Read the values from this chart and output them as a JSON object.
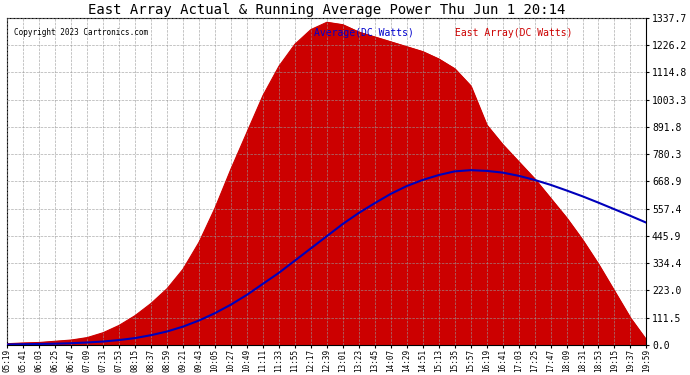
{
  "title": "East Array Actual & Running Average Power Thu Jun 1 20:14",
  "copyright": "Copyright 2023 Cartronics.com",
  "legend_avg": "Average(DC Watts)",
  "legend_east": "East Array(DC Watts)",
  "ymax": 1337.7,
  "ymin": 0.0,
  "yticks": [
    0.0,
    111.5,
    223.0,
    334.4,
    445.9,
    557.4,
    668.9,
    780.3,
    891.8,
    1003.3,
    1114.8,
    1226.2,
    1337.7
  ],
  "bg_color": "#ffffff",
  "plot_bg": "#ffffff",
  "border_color": "#000000",
  "grid_color": "#999999",
  "fill_color": "#cc0000",
  "line_color": "#0000bb",
  "title_color": "#000000",
  "copyright_color": "#000000",
  "legend_avg_color": "#0000cc",
  "legend_east_color": "#cc0000",
  "xtick_labels": [
    "05:19",
    "05:41",
    "06:03",
    "06:25",
    "06:47",
    "07:09",
    "07:31",
    "07:53",
    "08:15",
    "08:37",
    "08:59",
    "09:21",
    "09:43",
    "10:05",
    "10:27",
    "10:49",
    "11:11",
    "11:33",
    "11:55",
    "12:17",
    "12:39",
    "13:01",
    "13:23",
    "13:45",
    "14:07",
    "14:29",
    "14:51",
    "15:13",
    "15:35",
    "15:57",
    "16:19",
    "16:41",
    "17:03",
    "17:25",
    "17:47",
    "18:09",
    "18:31",
    "18:53",
    "19:15",
    "19:37",
    "19:59"
  ],
  "east_array_values": [
    5,
    8,
    10,
    15,
    20,
    30,
    50,
    80,
    120,
    170,
    230,
    310,
    420,
    560,
    720,
    870,
    1020,
    1140,
    1230,
    1290,
    1320,
    1310,
    1280,
    1260,
    1240,
    1220,
    1200,
    1170,
    1130,
    1060,
    900,
    820,
    750,
    680,
    600,
    520,
    430,
    330,
    220,
    110,
    20
  ],
  "avg_values": [
    2,
    3,
    4,
    5,
    7,
    10,
    14,
    20,
    28,
    40,
    55,
    75,
    100,
    130,
    165,
    205,
    250,
    295,
    345,
    395,
    445,
    495,
    540,
    580,
    618,
    650,
    675,
    695,
    710,
    715,
    712,
    705,
    692,
    675,
    655,
    632,
    608,
    582,
    555,
    528,
    500
  ]
}
